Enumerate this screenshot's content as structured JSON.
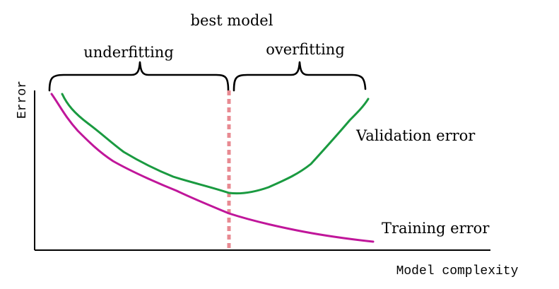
{
  "title": "best model",
  "regions": {
    "left": "underfitting",
    "right": "overfitting"
  },
  "axes": {
    "ylabel": "Error",
    "xlabel": "Model complexity"
  },
  "curves": {
    "validation": {
      "label": "Validation error",
      "color": "#1a9a40"
    },
    "training": {
      "label": "Training error",
      "color": "#c0169a"
    }
  },
  "best_model_marker_color": "#e88a92"
}
